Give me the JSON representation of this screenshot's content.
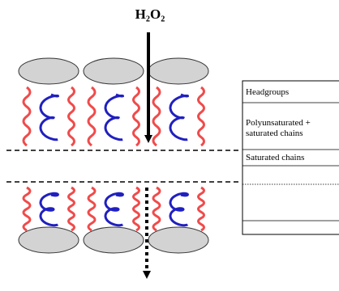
{
  "diagram": {
    "reagent": "H₂O₂",
    "legend": [
      "Headgroups",
      "Polyunsaturated + saturated chains",
      "Saturated chains"
    ]
  }
}
